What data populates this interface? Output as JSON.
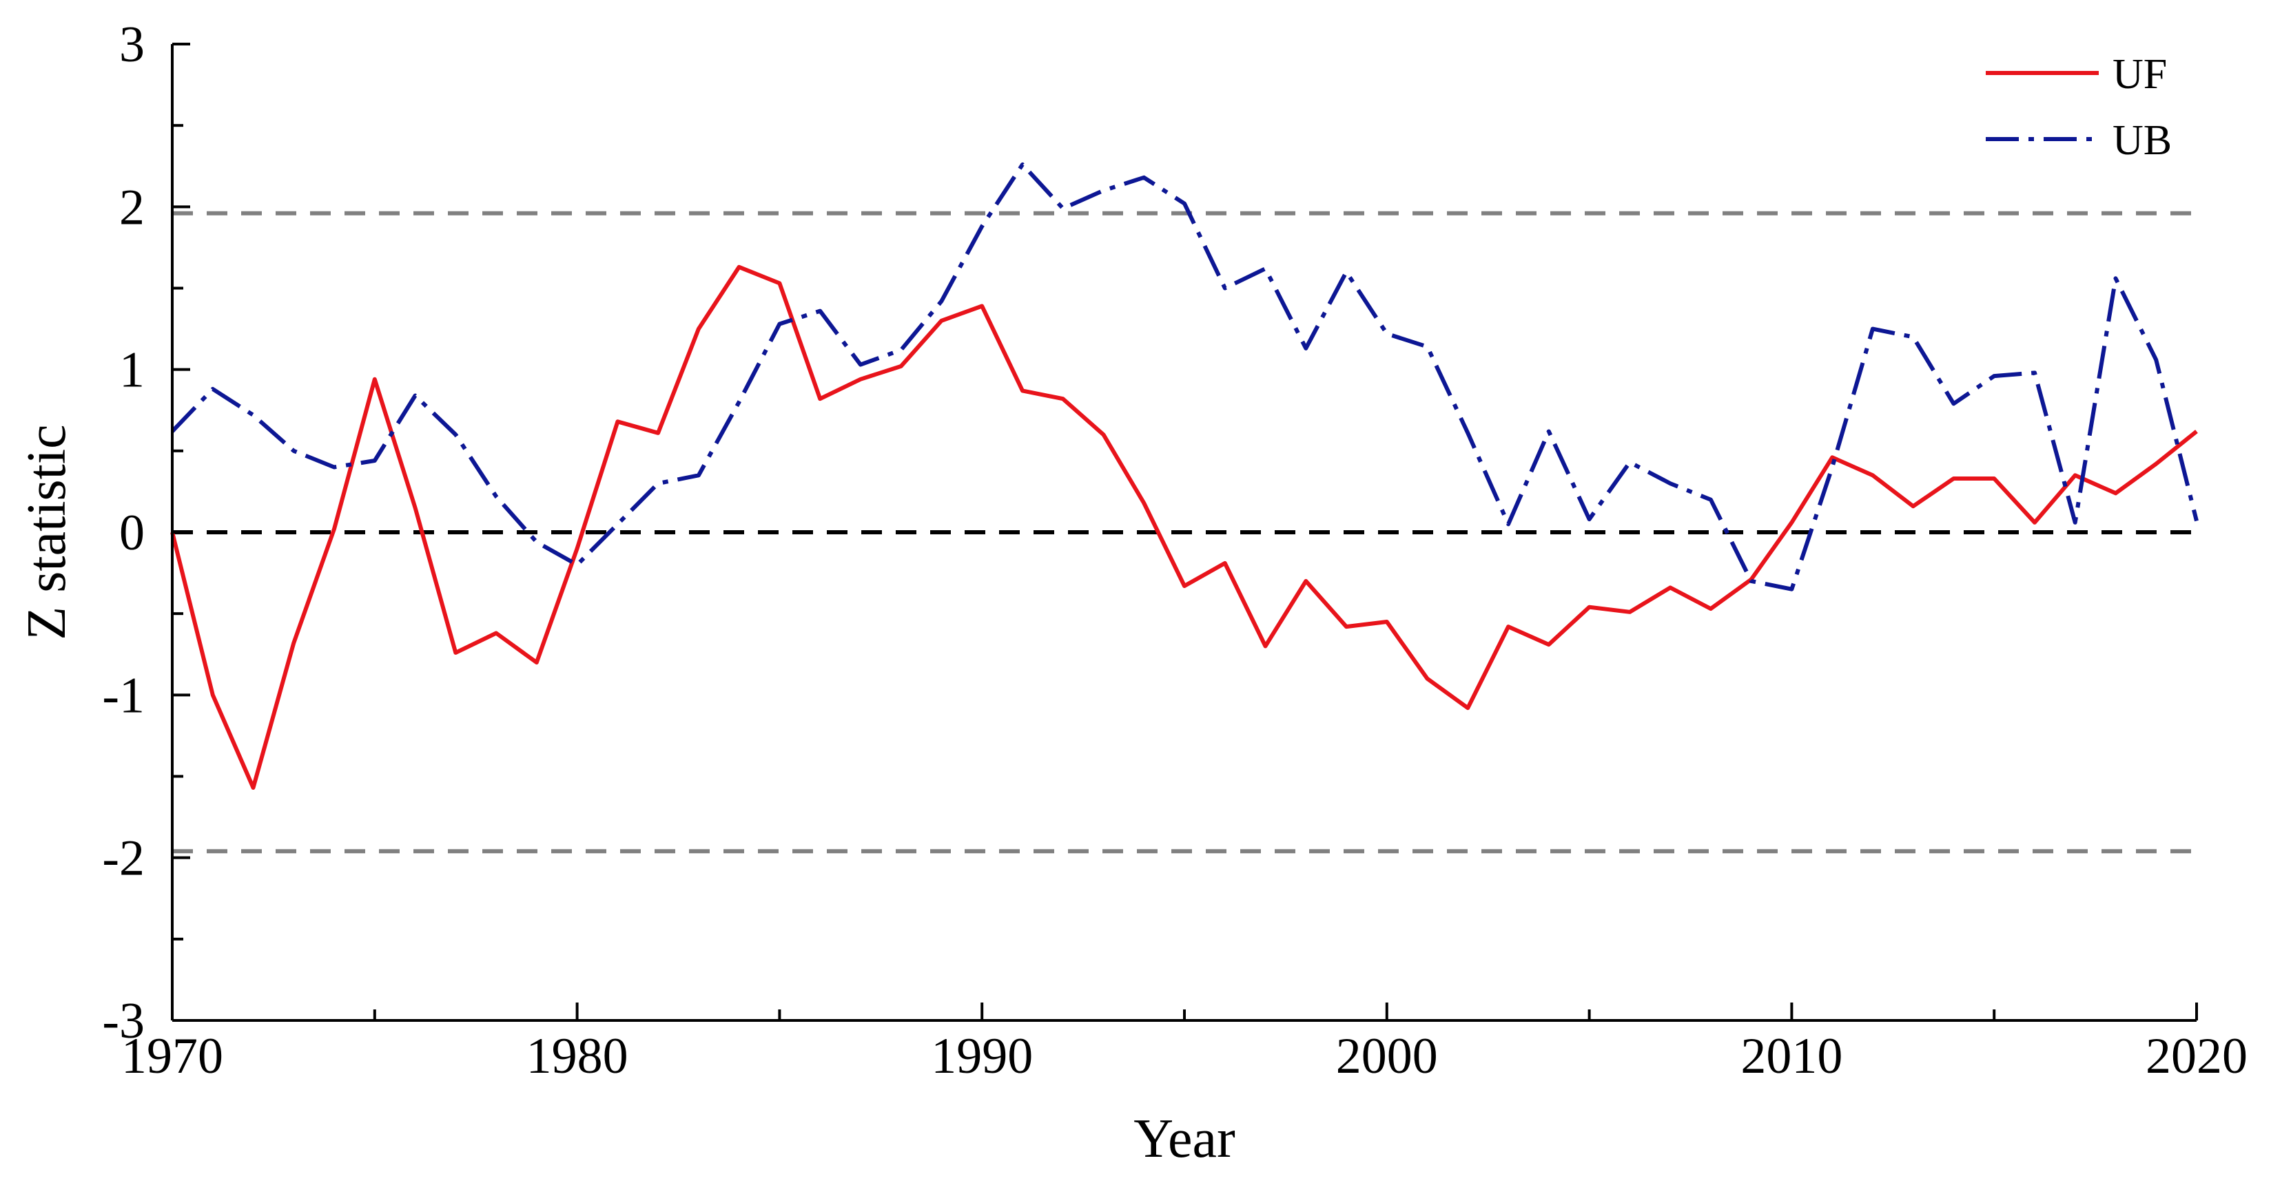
{
  "chart_data": {
    "type": "line",
    "xlabel": "Year",
    "ylabel": "Z statistic",
    "xlim": [
      1970,
      2020
    ],
    "ylim": [
      -3,
      3
    ],
    "x_ticks": [
      1970,
      1980,
      1990,
      2000,
      2010,
      2020
    ],
    "y_ticks": [
      -3,
      -2,
      -1,
      0,
      1,
      2,
      3
    ],
    "x_tick_labels": [
      "1970",
      "1980",
      "1990",
      "2000",
      "2010",
      "2020"
    ],
    "y_tick_labels": [
      "-3",
      "-2",
      "-1",
      "0",
      "1",
      "2",
      "3"
    ],
    "grid": false,
    "legend_position": "top-right",
    "reference_lines": [
      {
        "y": 1.96,
        "style": "dashed",
        "color": "#808080"
      },
      {
        "y": 0,
        "style": "dashed",
        "color": "#000000"
      },
      {
        "y": -1.96,
        "style": "dashed",
        "color": "#808080"
      }
    ],
    "x": [
      1970,
      1971,
      1972,
      1973,
      1974,
      1975,
      1976,
      1977,
      1978,
      1979,
      1980,
      1981,
      1982,
      1983,
      1984,
      1985,
      1986,
      1987,
      1988,
      1989,
      1990,
      1991,
      1992,
      1993,
      1994,
      1995,
      1996,
      1997,
      1998,
      1999,
      2000,
      2001,
      2002,
      2003,
      2004,
      2005,
      2006,
      2007,
      2008,
      2009,
      2010,
      2011,
      2012,
      2013,
      2014,
      2015,
      2016,
      2017,
      2018,
      2019,
      2020
    ],
    "series": [
      {
        "name": "UF",
        "color": "#e8141b",
        "style": "solid",
        "values": [
          0.0,
          -1.0,
          -1.57,
          -0.68,
          0.02,
          0.94,
          0.15,
          -0.74,
          -0.62,
          -0.8,
          -0.1,
          0.68,
          0.61,
          1.25,
          1.63,
          1.53,
          0.82,
          0.94,
          1.02,
          1.3,
          1.39,
          0.87,
          0.82,
          0.6,
          0.18,
          -0.33,
          -0.19,
          -0.7,
          -0.3,
          -0.58,
          -0.55,
          -0.9,
          -1.08,
          -0.58,
          -0.69,
          -0.46,
          -0.49,
          -0.34,
          -0.47,
          -0.29,
          0.06,
          0.46,
          0.35,
          0.16,
          0.33,
          0.33,
          0.06,
          0.35,
          0.24,
          0.42,
          0.62
        ]
      },
      {
        "name": "UB",
        "color": "#0d1794",
        "style": "dashdot",
        "values": [
          0.62,
          0.88,
          0.72,
          0.5,
          0.4,
          0.44,
          0.84,
          0.6,
          0.22,
          -0.06,
          -0.2,
          0.05,
          0.3,
          0.35,
          0.8,
          1.28,
          1.36,
          1.03,
          1.12,
          1.42,
          1.88,
          2.26,
          1.99,
          2.1,
          2.18,
          2.02,
          1.5,
          1.62,
          1.13,
          1.6,
          1.22,
          1.14,
          0.61,
          0.05,
          0.62,
          0.08,
          0.43,
          0.3,
          0.2,
          -0.3,
          -0.35,
          0.4,
          1.25,
          1.2,
          0.79,
          0.96,
          0.98,
          0.06,
          1.56,
          1.06,
          0.07
        ]
      }
    ]
  }
}
